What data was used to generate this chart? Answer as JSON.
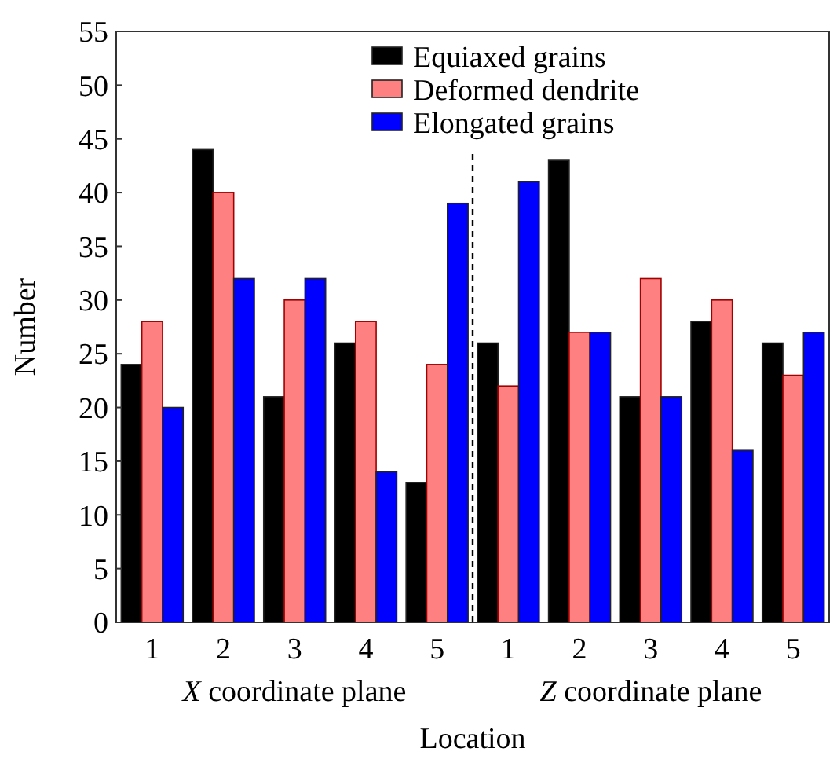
{
  "chart_data": {
    "type": "bar",
    "xlabel": "Location",
    "ylabel": "Number",
    "categories": [
      "1",
      "2",
      "3",
      "4",
      "5",
      "1",
      "2",
      "3",
      "4",
      "5"
    ],
    "series": [
      {
        "name": "Equiaxed grains",
        "color": "#000000",
        "values": [
          24,
          44,
          21,
          26,
          13,
          26,
          43,
          21,
          28,
          26
        ]
      },
      {
        "name": "Deformed dendrite",
        "color": "#ff8080",
        "values": [
          28,
          40,
          30,
          28,
          24,
          22,
          27,
          32,
          30,
          23
        ]
      },
      {
        "name": "Elongated grains",
        "color": "#0000ff",
        "values": [
          20,
          32,
          32,
          14,
          39,
          41,
          27,
          21,
          16,
          27
        ]
      }
    ],
    "ylim": [
      0,
      55
    ],
    "yticks": [
      0,
      5,
      10,
      15,
      20,
      25,
      30,
      35,
      40,
      45,
      50,
      55
    ],
    "annotations": [
      "X coordinate plane",
      "Z coordinate plane"
    ],
    "legend": "top right",
    "grid": false
  }
}
